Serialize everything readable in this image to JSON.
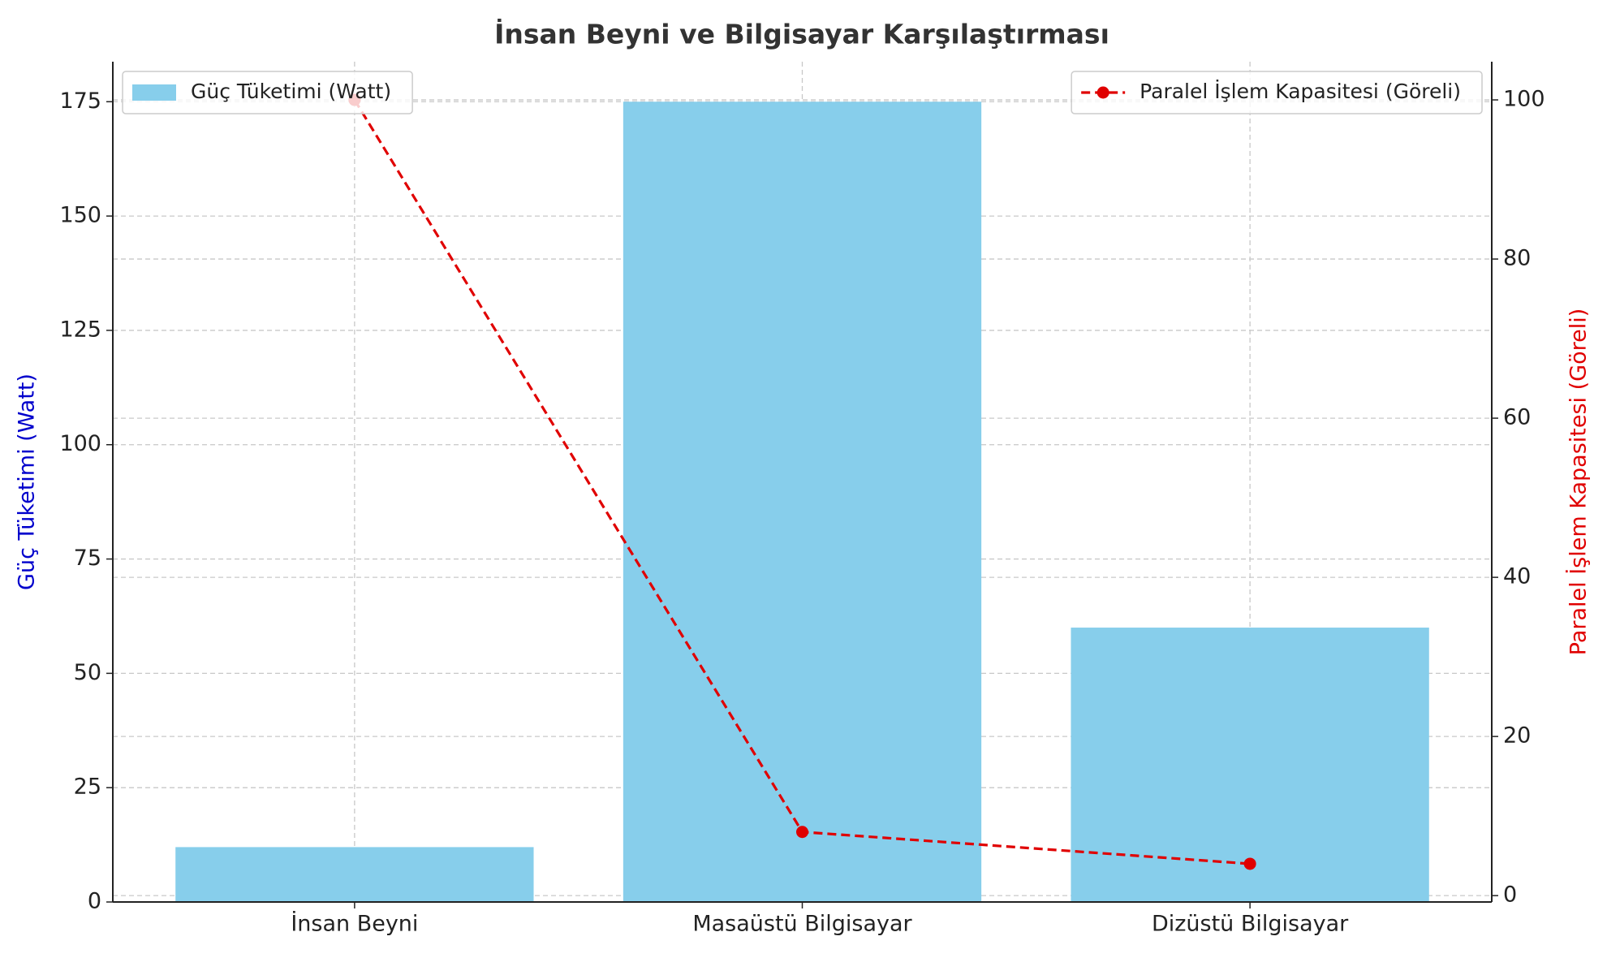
{
  "chart_data": {
    "type": "bar",
    "title": "İnsan Beyni ve Bilgisayar Karşılaştırması",
    "categories": [
      "İnsan Beyni",
      "Masaüstü Bilgisayar",
      "Dizüstü Bilgisayar"
    ],
    "y_label": "Güç Tüketimi (Watt)",
    "y2_label": "Paralel İşlem Kapasitesi (Göreli)",
    "y_label_color": "#0000cc",
    "y2_label_color": "#e00000",
    "series": [
      {
        "name": "Güç Tüketimi (Watt)",
        "type": "bar",
        "color": "#87ceeb",
        "values": [
          12,
          175,
          60
        ],
        "legend": "upper left"
      },
      {
        "name": "Paralel İşlem Kapasitesi (Göreli)",
        "type": "line",
        "axis": "y2",
        "color": "#e00000",
        "linestyle": "dashed",
        "marker": "circle",
        "values": [
          100,
          8,
          4
        ],
        "legend": "upper right"
      }
    ],
    "xlim": [
      -0.54,
      2.54
    ],
    "ylim": [
      0,
      183.75
    ],
    "yticks": [
      0,
      25,
      50,
      75,
      100,
      125,
      150,
      175
    ],
    "y2lim": [
      -0.8,
      104.8
    ],
    "y2ticks": [
      0,
      20,
      40,
      60,
      80,
      100
    ],
    "grid": true
  }
}
